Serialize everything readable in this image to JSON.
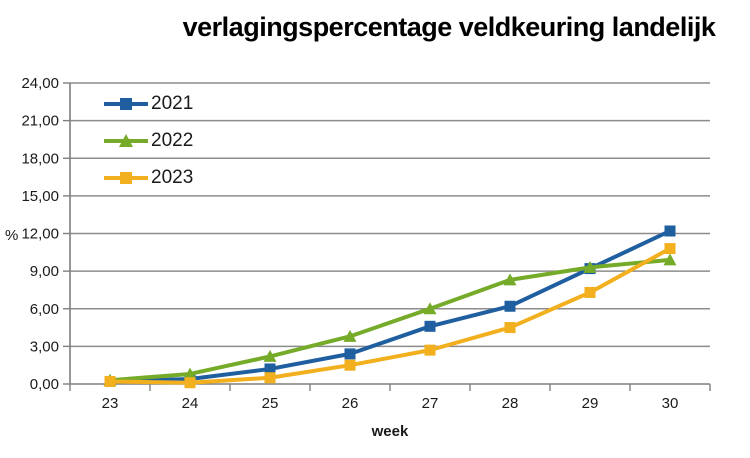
{
  "chart_data": {
    "type": "line",
    "title": "verlagingspercentage veldkeuring landelijk",
    "xlabel": "week",
    "ylabel": "%",
    "x": [
      23,
      24,
      25,
      26,
      27,
      28,
      29,
      30
    ],
    "x_tick_labels": [
      "23",
      "24",
      "25",
      "26",
      "27",
      "28",
      "29",
      "30"
    ],
    "ylim": [
      0,
      24
    ],
    "y_tick_step": 3,
    "y_tick_labels": [
      "0,00",
      "3,00",
      "6,00",
      "9,00",
      "12,00",
      "15,00",
      "18,00",
      "21,00",
      "24,00"
    ],
    "grid": "horizontal",
    "legend_position": "top-left-inside",
    "series": [
      {
        "name": "2021",
        "color": "#1f5fa0",
        "marker": "square",
        "values": [
          0.2,
          0.4,
          1.2,
          2.4,
          4.6,
          6.2,
          9.2,
          12.2
        ]
      },
      {
        "name": "2022",
        "color": "#76ab2a",
        "marker": "triangle",
        "values": [
          0.3,
          0.8,
          2.2,
          3.8,
          6.0,
          8.3,
          9.3,
          9.9
        ]
      },
      {
        "name": "2023",
        "color": "#f2b01e",
        "marker": "square",
        "values": [
          0.2,
          0.1,
          0.5,
          1.5,
          2.7,
          4.5,
          7.3,
          10.8
        ]
      }
    ],
    "style": {
      "gridline_color": "#8c8c8c",
      "axis_color": "#7f7f7f",
      "tick_label_color": "#1a1a1a",
      "title_color": "#000000"
    }
  }
}
